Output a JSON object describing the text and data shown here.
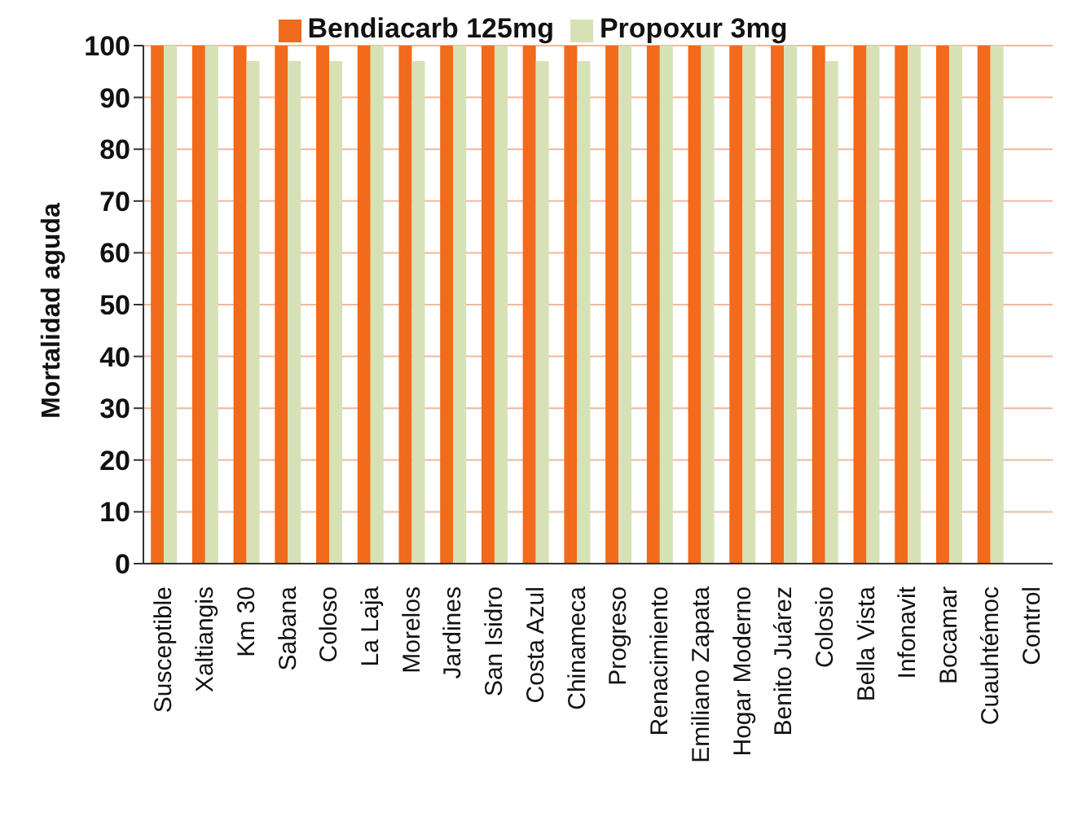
{
  "chart_data": {
    "type": "bar",
    "ylabel": "Mortalidad aguda",
    "categories": [
      "Susceptible",
      "Xaltiangis",
      "Km 30",
      "Sabana",
      "Coloso",
      "La Laja",
      "Morelos",
      "Jardines",
      "San Isidro",
      "Costa Azul",
      "Chinameca",
      "Progreso",
      "Renacimiento",
      "Emiliano Zapata",
      "Hogar Moderno",
      "Benito Juárez",
      "Colosio",
      "Bella Vista",
      "Infonavit",
      "Bocamar",
      "Cuauhtémoc",
      "Control"
    ],
    "series": [
      {
        "name": "Bendiacarb 125mg",
        "color": "#f26a1b",
        "values": [
          100,
          100,
          100,
          100,
          100,
          100,
          100,
          100,
          100,
          100,
          100,
          100,
          100,
          100,
          100,
          100,
          100,
          100,
          100,
          100,
          100,
          0
        ]
      },
      {
        "name": "Propoxur 3mg",
        "color": "#d6e2b6",
        "values": [
          100,
          100,
          97,
          97,
          97,
          100,
          97,
          100,
          100,
          97,
          97,
          100,
          100,
          100,
          100,
          100,
          97,
          100,
          100,
          100,
          100,
          0
        ]
      }
    ],
    "ylim": [
      0,
      100
    ],
    "yticks": [
      0,
      10,
      20,
      30,
      40,
      50,
      60,
      70,
      80,
      90,
      100
    ],
    "grid": "y",
    "legend": "top"
  }
}
